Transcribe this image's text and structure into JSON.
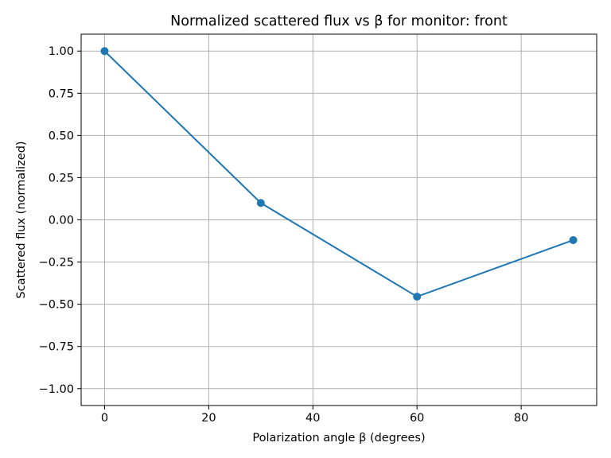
{
  "chart_data": {
    "type": "line",
    "title": "Normalized scattered flux vs β for monitor: front",
    "xlabel": "Polarization angle β (degrees)",
    "ylabel": "Scattered flux (normalized)",
    "xlim": [
      -4.5,
      94.5
    ],
    "ylim": [
      -1.1,
      1.1
    ],
    "xticks": [
      0,
      20,
      40,
      60,
      80
    ],
    "xtick_labels": [
      "0",
      "20",
      "40",
      "60",
      "80"
    ],
    "yticks": [
      1.0,
      0.75,
      0.5,
      0.25,
      0.0,
      -0.25,
      -0.5,
      -0.75,
      -1.0
    ],
    "ytick_labels": [
      "1.00",
      "0.75",
      "0.50",
      "0.25",
      "0.00",
      "−0.25",
      "−0.50",
      "−0.75",
      "−1.00"
    ],
    "grid": true,
    "series": [
      {
        "color": "#1f77b4",
        "marker": "circle",
        "x": [
          0,
          30,
          60,
          90
        ],
        "y": [
          1.0,
          0.1,
          -0.455,
          -0.12
        ]
      }
    ]
  }
}
